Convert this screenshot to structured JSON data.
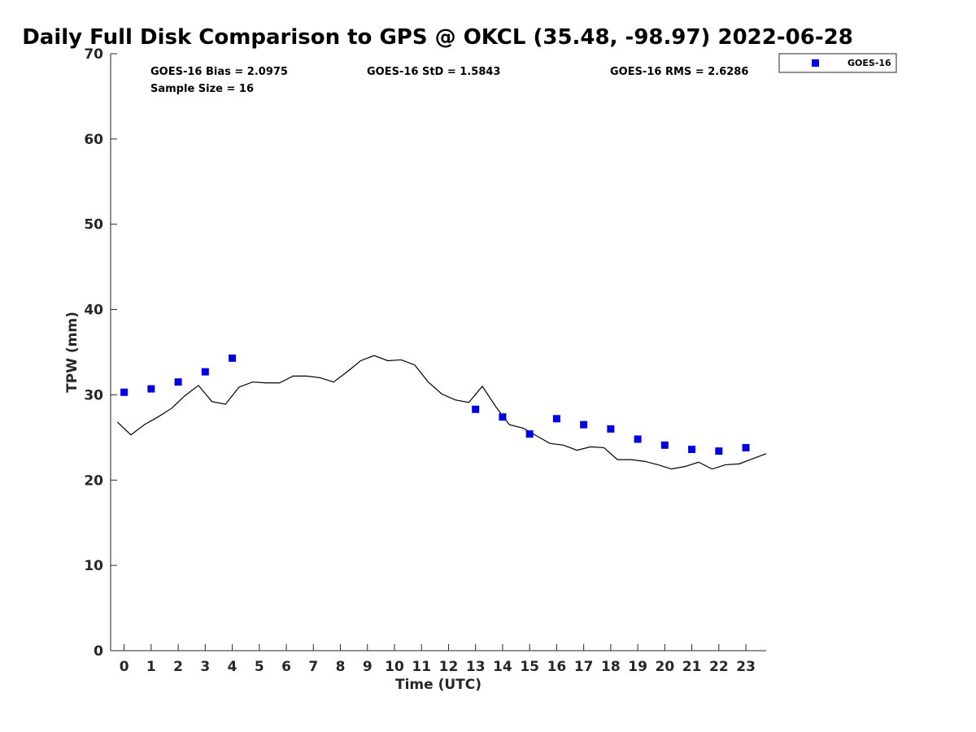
{
  "chart_data": {
    "type": "scatter",
    "title": "Daily Full Disk Comparison to GPS @ OKCL (35.48, -98.97) 2022-06-28",
    "xlabel": "Time (UTC)",
    "ylabel": "TPW (mm)",
    "xlim": [
      -0.5,
      23.75
    ],
    "ylim": [
      0,
      70
    ],
    "x_ticks": [
      "0",
      "1",
      "2",
      "3",
      "4",
      "5",
      "6",
      "7",
      "8",
      "9",
      "10",
      "11",
      "12",
      "13",
      "14",
      "15",
      "16",
      "17",
      "18",
      "19",
      "20",
      "21",
      "22",
      "23"
    ],
    "y_ticks": [
      "0",
      "10",
      "20",
      "30",
      "40",
      "50",
      "60",
      "70"
    ],
    "grid": false,
    "legend_position": "top-right (outside plot)",
    "stats": {
      "bias": "GOES-16 Bias = 2.0975",
      "std": "GOES-16 StD = 1.5843",
      "rms": "GOES-16 RMS = 2.6286",
      "sample": "Sample Size = 16"
    },
    "series": [
      {
        "name": "GOES-16",
        "kind": "scatter",
        "marker": "square",
        "color": "#0000e0",
        "points": [
          [
            0,
            30.3
          ],
          [
            1,
            30.7
          ],
          [
            2,
            31.5
          ],
          [
            3,
            32.7
          ],
          [
            4,
            34.3
          ],
          [
            13,
            28.3
          ],
          [
            14,
            27.4
          ],
          [
            15,
            25.4
          ],
          [
            16,
            27.2
          ],
          [
            17,
            26.5
          ],
          [
            18,
            26.0
          ],
          [
            19,
            24.8
          ],
          [
            20,
            24.1
          ],
          [
            21,
            23.6
          ],
          [
            22,
            23.4
          ],
          [
            23,
            23.8
          ]
        ]
      },
      {
        "name": "GPS",
        "kind": "line",
        "color": "#000000",
        "points": [
          [
            -0.25,
            26.8
          ],
          [
            0.25,
            25.3
          ],
          [
            0.75,
            26.5
          ],
          [
            1.25,
            27.4
          ],
          [
            1.75,
            28.4
          ],
          [
            2.25,
            29.9
          ],
          [
            2.75,
            31.1
          ],
          [
            3.25,
            29.2
          ],
          [
            3.75,
            28.9
          ],
          [
            4.25,
            30.9
          ],
          [
            4.75,
            31.5
          ],
          [
            5.25,
            31.4
          ],
          [
            5.75,
            31.4
          ],
          [
            6.25,
            32.2
          ],
          [
            6.75,
            32.2
          ],
          [
            7.25,
            32.0
          ],
          [
            7.75,
            31.5
          ],
          [
            8.25,
            32.7
          ],
          [
            8.75,
            34.0
          ],
          [
            9.25,
            34.6
          ],
          [
            9.75,
            34.0
          ],
          [
            10.25,
            34.1
          ],
          [
            10.75,
            33.5
          ],
          [
            11.25,
            31.5
          ],
          [
            11.75,
            30.1
          ],
          [
            12.25,
            29.4
          ],
          [
            12.75,
            29.1
          ],
          [
            13.25,
            31.0
          ],
          [
            13.75,
            28.6
          ],
          [
            14.25,
            26.5
          ],
          [
            14.75,
            26.1
          ],
          [
            15.25,
            25.2
          ],
          [
            15.75,
            24.3
          ],
          [
            16.25,
            24.1
          ],
          [
            16.75,
            23.5
          ],
          [
            17.25,
            23.9
          ],
          [
            17.75,
            23.8
          ],
          [
            18.25,
            22.4
          ],
          [
            18.75,
            22.4
          ],
          [
            19.25,
            22.2
          ],
          [
            19.75,
            21.8
          ],
          [
            20.25,
            21.3
          ],
          [
            20.75,
            21.6
          ],
          [
            21.25,
            22.1
          ],
          [
            21.75,
            21.3
          ],
          [
            22.25,
            21.8
          ],
          [
            22.75,
            21.9
          ],
          [
            23.25,
            22.5
          ],
          [
            23.75,
            23.1
          ]
        ]
      }
    ]
  }
}
